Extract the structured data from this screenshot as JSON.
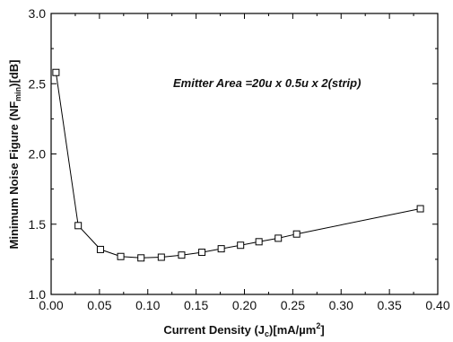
{
  "chart_data": {
    "type": "line",
    "xlabel": {
      "pre": "Current Density (J",
      "sub": "c",
      "mid": ")[mA/µm",
      "sup": "2",
      "post": "]"
    },
    "ylabel": {
      "pre": "Minimum Noise Figure (NF",
      "sub": "min",
      "post": ")[dB]"
    },
    "annotation": "Emitter Area =20u x 0.5u x 2(strip)",
    "xlim": [
      0.0,
      0.4
    ],
    "ylim": [
      1.0,
      3.0
    ],
    "x_ticks": [
      "0.00",
      "0.05",
      "0.10",
      "0.15",
      "0.20",
      "0.25",
      "0.30",
      "0.35",
      "0.40"
    ],
    "y_ticks": [
      "1.0",
      "1.5",
      "2.0",
      "2.5",
      "3.0"
    ],
    "grid": false,
    "marker": "open-square",
    "series": [
      {
        "x": [
          0.005,
          0.028,
          0.051,
          0.072,
          0.093,
          0.114,
          0.135,
          0.156,
          0.176,
          0.196,
          0.215,
          0.235,
          0.254,
          0.382
        ],
        "y": [
          2.58,
          1.49,
          1.32,
          1.27,
          1.26,
          1.265,
          1.28,
          1.3,
          1.325,
          1.35,
          1.375,
          1.4,
          1.43,
          1.61
        ]
      }
    ],
    "colors": {
      "line": "#000000",
      "marker_fill": "#ffffff",
      "axis": "#000000"
    }
  }
}
